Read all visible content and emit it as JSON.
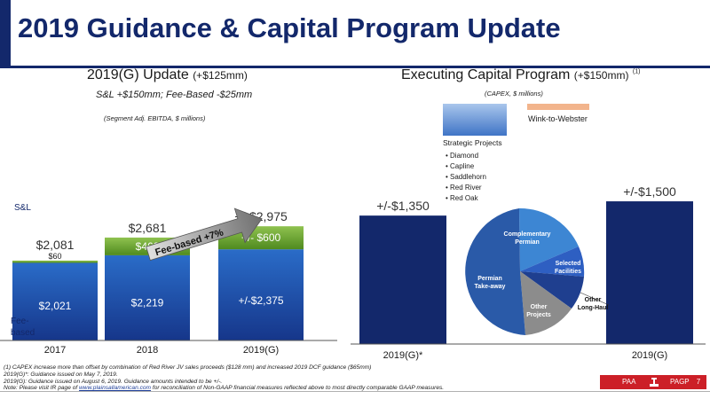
{
  "title": "2019 Guidance & Capital Program Update",
  "left": {
    "heading": "2019(G) Update",
    "heading_delta": "(+$125mm)",
    "subheading": "S&L +$150mm; Fee-Based -$25mm",
    "unit_note": "(Segment Adj. EBITDA, $ millions)",
    "arrow_label": "Fee-based +7%",
    "legend_sl": "S&L",
    "legend_fee": "Fee-\nbased"
  },
  "right": {
    "heading": "Executing Capital Program",
    "heading_delta": "(+$150mm)",
    "heading_sup": "(1)",
    "unit_note": "(CAPEX, $ millions)",
    "legend_strategic": "Strategic Projects",
    "legend_wink": "Wink-to-Webster",
    "strategic_list": [
      "Diamond",
      "Capline",
      "Saddlehorn",
      "Red River",
      "Red Oak"
    ],
    "donut": {
      "slices": [
        {
          "label": "Complementary\nPermian",
          "color": "#3d86d3"
        },
        {
          "label": "Selected\nFacilities",
          "color": "#2e5fc2"
        },
        {
          "label": "Other\nLong-Haul",
          "color": "#1f3f8f"
        },
        {
          "label": "Other\nProjects",
          "color": "#8c8c8c"
        },
        {
          "label": "Permian\nTake-away",
          "color": "#2a5aa8"
        }
      ]
    }
  },
  "chart_data": [
    {
      "type": "bar",
      "stacked": true,
      "categories": [
        "2017",
        "2018",
        "2019(G)"
      ],
      "series": [
        {
          "name": "Fee-based",
          "values": [
            2021,
            2219,
            2375
          ],
          "labels": [
            "$2,021",
            "$2,219",
            "+/-$2,375"
          ]
        },
        {
          "name": "S&L",
          "values": [
            60,
            462,
            600
          ],
          "labels": [
            "$60",
            "$462",
            "+/- $600"
          ]
        }
      ],
      "totals": [
        "$2,081",
        "$2,681",
        "+/-$2,975"
      ]
    },
    {
      "type": "bar",
      "categories": [
        "2019(G)*",
        "2019(G)"
      ],
      "values": [
        1350,
        1500
      ],
      "labels": [
        "+/-$1,350",
        "+/-$1,500"
      ]
    }
  ],
  "footnotes": [
    "(1) CAPEX increase more than offset by combination of Red River JV sales proceeds ($128 mm) and increased 2019 DCF guidance ($65mm)",
    "2019(G)*: Guidance issued on May 7, 2019.",
    "2019(G): Guidance issued on August 6, 2019. Guidance amounts intended to be +/-.",
    "Note: Please visit IR page of",
    "www.plainsallamerican.com",
    "for reconciliation of Non-GAAP financial measures reflected above to most directly comparable GAAP measures."
  ],
  "footer": {
    "paa": "PAA",
    "pagp": "PAGP",
    "page": "7"
  }
}
